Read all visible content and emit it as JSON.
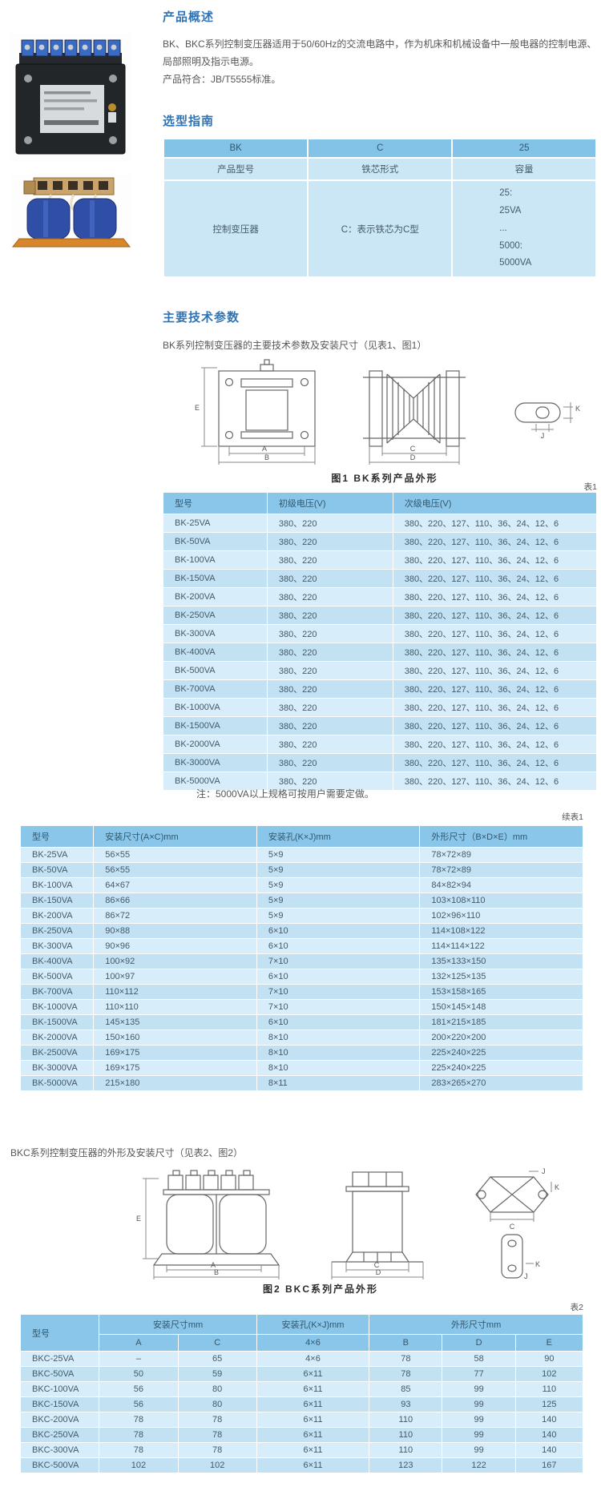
{
  "colors": {
    "heading_blue": "#2f74b5",
    "table_header_blue": "#89c6ea",
    "row_light": "#d7edf9",
    "row_dark": "#c2e2f3"
  },
  "photos": {
    "photo1_name": "bk-transformer-photo",
    "photo2_name": "bkc-transformer-photo"
  },
  "overview": {
    "heading": "产品概述",
    "p1": "BK、BKC系列控制变压器适用于50/60Hz的交流电路中，作为机床和机械设备中一般电器的控制电源、局部照明及指示电源。",
    "p2": "产品符合：JB/T5555标准。"
  },
  "selection": {
    "heading": "选型指南",
    "code_row": [
      "BK",
      "C",
      "25"
    ],
    "label_row": [
      "产品型号",
      "铁芯形式",
      "容量"
    ],
    "desc_col1": "控制变压器",
    "desc_col2": "C：表示铁芯为C型",
    "desc_col3": [
      "25:",
      "25VA",
      "...",
      "5000:",
      "5000VA"
    ]
  },
  "tech": {
    "heading": "主要技术参数",
    "bk_intro": "BK系列控制变压器的主要技术参数及安装尺寸（见表1、图1）",
    "bkc_intro": "BKC系列控制变压器的外形及安装尺寸（见表2、图2）",
    "note": "注：5000VA以上规格可按用户需要定做。"
  },
  "fig1": {
    "caption": "图1 BK系列产品外形",
    "dims": {
      "a": "A",
      "b": "B",
      "c": "C",
      "d": "D",
      "e": "E",
      "k": "K",
      "j": "J"
    }
  },
  "fig2": {
    "caption": "图2 BKC系列产品外形",
    "dims": {
      "a": "A",
      "b": "B",
      "c": "C",
      "d": "D",
      "e": "E",
      "k": "K",
      "j": "J"
    }
  },
  "table1": {
    "label": "表1",
    "headers": [
      "型号",
      "初级电压(V)",
      "次级电压(V)"
    ],
    "rows": [
      [
        "BK-25VA",
        "380、220",
        "380、220、127、110、36、24、12、6"
      ],
      [
        "BK-50VA",
        "380、220",
        "380、220、127、110、36、24、12、6"
      ],
      [
        "BK-100VA",
        "380、220",
        "380、220、127、110、36、24、12、6"
      ],
      [
        "BK-150VA",
        "380、220",
        "380、220、127、110、36、24、12、6"
      ],
      [
        "BK-200VA",
        "380、220",
        "380、220、127、110、36、24、12、6"
      ],
      [
        "BK-250VA",
        "380、220",
        "380、220、127、110、36、24、12、6"
      ],
      [
        "BK-300VA",
        "380、220",
        "380、220、127、110、36、24、12、6"
      ],
      [
        "BK-400VA",
        "380、220",
        "380、220、127、110、36、24、12、6"
      ],
      [
        "BK-500VA",
        "380、220",
        "380、220、127、110、36、24、12、6"
      ],
      [
        "BK-700VA",
        "380、220",
        "380、220、127、110、36、24、12、6"
      ],
      [
        "BK-1000VA",
        "380、220",
        "380、220、127、110、36、24、12、6"
      ],
      [
        "BK-1500VA",
        "380、220",
        "380、220、127、110、36、24、12、6"
      ],
      [
        "BK-2000VA",
        "380、220",
        "380、220、127、110、36、24、12、6"
      ],
      [
        "BK-3000VA",
        "380、220",
        "380、220、127、110、36、24、12、6"
      ],
      [
        "BK-5000VA",
        "380、220",
        "380、220、127、110、36、24、12、6"
      ]
    ]
  },
  "table1b": {
    "label": "续表1",
    "headers": [
      "型号",
      "安装尺寸(A×C)mm",
      "安装孔(K×J)mm",
      "外形尺寸（B×D×E）mm"
    ],
    "rows": [
      [
        "BK-25VA",
        "56×55",
        "5×9",
        "78×72×89"
      ],
      [
        "BK-50VA",
        "56×55",
        "5×9",
        "78×72×89"
      ],
      [
        "BK-100VA",
        "64×67",
        "5×9",
        "84×82×94"
      ],
      [
        "BK-150VA",
        "86×66",
        "5×9",
        "103×108×110"
      ],
      [
        "BK-200VA",
        "86×72",
        "5×9",
        "102×96×110"
      ],
      [
        "BK-250VA",
        "90×88",
        "6×10",
        "114×108×122"
      ],
      [
        "BK-300VA",
        "90×96",
        "6×10",
        "114×114×122"
      ],
      [
        "BK-400VA",
        "100×92",
        "7×10",
        "135×133×150"
      ],
      [
        "BK-500VA",
        "100×97",
        "6×10",
        "132×125×135"
      ],
      [
        "BK-700VA",
        "110×112",
        "7×10",
        "153×158×165"
      ],
      [
        "BK-1000VA",
        "110×110",
        "7×10",
        "150×145×148"
      ],
      [
        "BK-1500VA",
        "145×135",
        "6×10",
        "181×215×185"
      ],
      [
        "BK-2000VA",
        "150×160",
        "8×10",
        "200×220×200"
      ],
      [
        "BK-2500VA",
        "169×175",
        "8×10",
        "225×240×225"
      ],
      [
        "BK-3000VA",
        "169×175",
        "8×10",
        "225×240×225"
      ],
      [
        "BK-5000VA",
        "215×180",
        "8×11",
        "283×265×270"
      ]
    ]
  },
  "table2": {
    "label": "表2",
    "header": {
      "model": "型号",
      "mount_group": "安装尺寸mm",
      "hole_group": "安装孔(K×J)mm",
      "dims_group": "外形尺寸mm",
      "sub": [
        "A",
        "C",
        "4×6",
        "B",
        "D",
        "E"
      ]
    },
    "rows": [
      [
        "BKC-25VA",
        "–",
        "65",
        "4×6",
        "78",
        "58",
        "90"
      ],
      [
        "BKC-50VA",
        "50",
        "59",
        "6×11",
        "78",
        "77",
        "102"
      ],
      [
        "BKC-100VA",
        "56",
        "80",
        "6×11",
        "85",
        "99",
        "110"
      ],
      [
        "BKC-150VA",
        "56",
        "80",
        "6×11",
        "93",
        "99",
        "125"
      ],
      [
        "BKC-200VA",
        "78",
        "78",
        "6×11",
        "110",
        "99",
        "140"
      ],
      [
        "BKC-250VA",
        "78",
        "78",
        "6×11",
        "110",
        "99",
        "140"
      ],
      [
        "BKC-300VA",
        "78",
        "78",
        "6×11",
        "110",
        "99",
        "140"
      ],
      [
        "BKC-500VA",
        "102",
        "102",
        "6×11",
        "123",
        "122",
        "167"
      ]
    ]
  }
}
